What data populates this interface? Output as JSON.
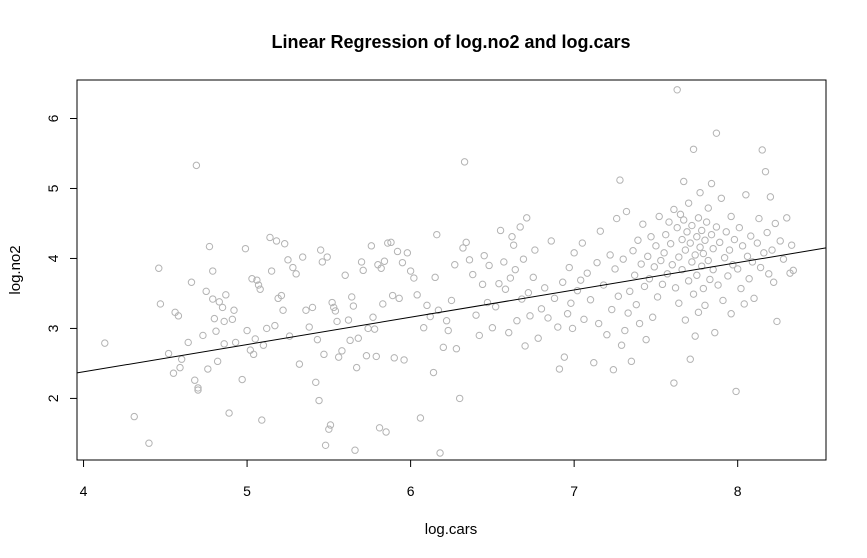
{
  "chart_data": {
    "type": "scatter",
    "title": "Linear Regression of log.no2 and log.cars",
    "xlabel": "log.cars",
    "ylabel": "log.no2",
    "xlim": [
      3.96,
      8.54
    ],
    "ylim": [
      1.12,
      6.55
    ],
    "xticks": [
      4,
      5,
      6,
      7,
      8
    ],
    "yticks": [
      2,
      3,
      4,
      5,
      6
    ],
    "grid": false,
    "legend": "none",
    "point_color": "#b3b3b3",
    "line_color": "#000000",
    "regression_line": {
      "intercept": 0.82,
      "slope": 0.39
    },
    "points": [
      [
        4.13,
        2.79
      ],
      [
        4.31,
        1.74
      ],
      [
        4.4,
        1.36
      ],
      [
        4.46,
        3.86
      ],
      [
        4.47,
        3.35
      ],
      [
        4.52,
        2.64
      ],
      [
        4.55,
        2.36
      ],
      [
        4.56,
        3.23
      ],
      [
        4.58,
        3.18
      ],
      [
        4.59,
        2.44
      ],
      [
        4.6,
        2.56
      ],
      [
        4.64,
        2.8
      ],
      [
        4.66,
        3.66
      ],
      [
        4.68,
        2.26
      ],
      [
        4.69,
        5.33
      ],
      [
        4.7,
        2.12
      ],
      [
        4.7,
        2.15
      ],
      [
        4.73,
        2.9
      ],
      [
        4.75,
        3.53
      ],
      [
        4.76,
        2.42
      ],
      [
        4.77,
        4.17
      ],
      [
        4.79,
        3.82
      ],
      [
        4.79,
        3.42
      ],
      [
        4.8,
        3.14
      ],
      [
        4.81,
        2.96
      ],
      [
        4.82,
        2.53
      ],
      [
        4.83,
        3.38
      ],
      [
        4.85,
        3.3
      ],
      [
        4.86,
        3.1
      ],
      [
        4.86,
        2.78
      ],
      [
        4.87,
        3.48
      ],
      [
        4.89,
        1.79
      ],
      [
        4.91,
        3.13
      ],
      [
        4.92,
        3.26
      ],
      [
        4.93,
        2.8
      ],
      [
        4.97,
        2.27
      ],
      [
        4.99,
        4.14
      ],
      [
        5.0,
        2.97
      ],
      [
        5.02,
        2.69
      ],
      [
        5.03,
        3.71
      ],
      [
        5.04,
        2.63
      ],
      [
        5.05,
        2.85
      ],
      [
        5.06,
        3.69
      ],
      [
        5.07,
        3.62
      ],
      [
        5.08,
        3.56
      ],
      [
        5.09,
        1.69
      ],
      [
        5.1,
        2.76
      ],
      [
        5.12,
        3.0
      ],
      [
        5.14,
        4.3
      ],
      [
        5.15,
        3.82
      ],
      [
        5.17,
        3.04
      ],
      [
        5.18,
        4.25
      ],
      [
        5.19,
        3.43
      ],
      [
        5.21,
        3.47
      ],
      [
        5.22,
        3.26
      ],
      [
        5.23,
        4.21
      ],
      [
        5.25,
        3.98
      ],
      [
        5.26,
        2.89
      ],
      [
        5.28,
        3.87
      ],
      [
        5.3,
        3.78
      ],
      [
        5.32,
        2.49
      ],
      [
        5.34,
        4.02
      ],
      [
        5.36,
        3.26
      ],
      [
        5.38,
        3.02
      ],
      [
        5.4,
        3.3
      ],
      [
        5.42,
        2.23
      ],
      [
        5.43,
        2.84
      ],
      [
        5.44,
        1.97
      ],
      [
        5.45,
        4.12
      ],
      [
        5.46,
        3.95
      ],
      [
        5.47,
        2.63
      ],
      [
        5.48,
        1.33
      ],
      [
        5.49,
        4.02
      ],
      [
        5.5,
        1.56
      ],
      [
        5.51,
        1.62
      ],
      [
        5.52,
        3.37
      ],
      [
        5.53,
        3.3
      ],
      [
        5.54,
        3.25
      ],
      [
        5.55,
        3.1
      ],
      [
        5.56,
        2.59
      ],
      [
        5.58,
        2.68
      ],
      [
        5.6,
        3.76
      ],
      [
        5.62,
        3.12
      ],
      [
        5.63,
        2.83
      ],
      [
        5.64,
        3.45
      ],
      [
        5.65,
        3.32
      ],
      [
        5.66,
        1.26
      ],
      [
        5.67,
        2.44
      ],
      [
        5.68,
        2.86
      ],
      [
        5.7,
        3.95
      ],
      [
        5.71,
        3.83
      ],
      [
        5.73,
        2.61
      ],
      [
        5.74,
        3.0
      ],
      [
        5.76,
        4.18
      ],
      [
        5.77,
        3.16
      ],
      [
        5.78,
        2.99
      ],
      [
        5.79,
        2.6
      ],
      [
        5.8,
        3.91
      ],
      [
        5.81,
        1.58
      ],
      [
        5.82,
        3.86
      ],
      [
        5.83,
        3.35
      ],
      [
        5.84,
        3.96
      ],
      [
        5.85,
        1.52
      ],
      [
        5.86,
        4.22
      ],
      [
        5.88,
        4.23
      ],
      [
        5.89,
        3.47
      ],
      [
        5.9,
        2.58
      ],
      [
        5.92,
        4.1
      ],
      [
        5.93,
        3.43
      ],
      [
        5.95,
        3.94
      ],
      [
        5.96,
        2.55
      ],
      [
        5.98,
        4.08
      ],
      [
        6.0,
        3.82
      ],
      [
        6.02,
        3.72
      ],
      [
        6.04,
        3.48
      ],
      [
        6.06,
        1.72
      ],
      [
        6.08,
        3.01
      ],
      [
        6.1,
        3.33
      ],
      [
        6.12,
        3.17
      ],
      [
        6.14,
        2.37
      ],
      [
        6.15,
        3.73
      ],
      [
        6.16,
        4.34
      ],
      [
        6.17,
        3.26
      ],
      [
        6.18,
        1.22
      ],
      [
        6.2,
        2.73
      ],
      [
        6.22,
        3.11
      ],
      [
        6.23,
        2.97
      ],
      [
        6.25,
        3.4
      ],
      [
        6.27,
        3.91
      ],
      [
        6.28,
        2.71
      ],
      [
        6.3,
        2.0
      ],
      [
        6.32,
        4.15
      ],
      [
        6.33,
        5.38
      ],
      [
        6.34,
        4.23
      ],
      [
        6.36,
        3.98
      ],
      [
        6.38,
        3.77
      ],
      [
        6.4,
        3.19
      ],
      [
        6.42,
        2.9
      ],
      [
        6.44,
        3.63
      ],
      [
        6.45,
        4.04
      ],
      [
        6.47,
        3.37
      ],
      [
        6.48,
        3.9
      ],
      [
        6.5,
        3.01
      ],
      [
        6.52,
        3.31
      ],
      [
        6.54,
        3.64
      ],
      [
        6.55,
        4.4
      ],
      [
        6.57,
        3.95
      ],
      [
        6.58,
        3.56
      ],
      [
        6.6,
        2.94
      ],
      [
        6.61,
        3.72
      ],
      [
        6.62,
        4.31
      ],
      [
        6.63,
        4.19
      ],
      [
        6.64,
        3.84
      ],
      [
        6.65,
        3.11
      ],
      [
        6.67,
        4.45
      ],
      [
        6.68,
        3.42
      ],
      [
        6.69,
        3.99
      ],
      [
        6.7,
        2.75
      ],
      [
        6.71,
        4.58
      ],
      [
        6.72,
        3.51
      ],
      [
        6.73,
        3.18
      ],
      [
        6.75,
        3.73
      ],
      [
        6.76,
        4.12
      ],
      [
        6.78,
        2.86
      ],
      [
        6.8,
        3.28
      ],
      [
        6.82,
        3.58
      ],
      [
        6.84,
        3.15
      ],
      [
        6.86,
        4.25
      ],
      [
        6.88,
        3.43
      ],
      [
        6.9,
        3.02
      ],
      [
        6.91,
        2.42
      ],
      [
        6.93,
        3.66
      ],
      [
        6.94,
        2.59
      ],
      [
        6.96,
        3.21
      ],
      [
        6.97,
        3.87
      ],
      [
        6.98,
        3.36
      ],
      [
        6.99,
        3.0
      ],
      [
        7.0,
        4.08
      ],
      [
        7.02,
        3.54
      ],
      [
        7.04,
        3.69
      ],
      [
        7.05,
        4.22
      ],
      [
        7.06,
        3.13
      ],
      [
        7.08,
        3.79
      ],
      [
        7.1,
        3.41
      ],
      [
        7.12,
        2.51
      ],
      [
        7.14,
        3.94
      ],
      [
        7.15,
        3.07
      ],
      [
        7.16,
        4.39
      ],
      [
        7.18,
        3.62
      ],
      [
        7.2,
        2.91
      ],
      [
        7.22,
        4.05
      ],
      [
        7.23,
        3.27
      ],
      [
        7.24,
        2.41
      ],
      [
        7.25,
        3.85
      ],
      [
        7.26,
        4.57
      ],
      [
        7.27,
        3.46
      ],
      [
        7.28,
        5.12
      ],
      [
        7.29,
        2.76
      ],
      [
        7.3,
        3.99
      ],
      [
        7.31,
        2.97
      ],
      [
        7.32,
        4.67
      ],
      [
        7.33,
        3.22
      ],
      [
        7.34,
        3.53
      ],
      [
        7.35,
        2.53
      ],
      [
        7.36,
        4.11
      ],
      [
        7.37,
        3.76
      ],
      [
        7.38,
        3.34
      ],
      [
        7.39,
        4.26
      ],
      [
        7.4,
        3.07
      ],
      [
        7.41,
        3.92
      ],
      [
        7.42,
        4.49
      ],
      [
        7.43,
        3.6
      ],
      [
        7.44,
        2.84
      ],
      [
        7.45,
        4.03
      ],
      [
        7.46,
        3.71
      ],
      [
        7.47,
        4.31
      ],
      [
        7.48,
        3.16
      ],
      [
        7.49,
        3.88
      ],
      [
        7.5,
        4.18
      ],
      [
        7.51,
        3.45
      ],
      [
        7.52,
        4.6
      ],
      [
        7.53,
        3.97
      ],
      [
        7.54,
        3.63
      ],
      [
        7.55,
        4.08
      ],
      [
        7.56,
        4.34
      ],
      [
        7.57,
        3.78
      ],
      [
        7.58,
        4.52
      ],
      [
        7.59,
        4.21
      ],
      [
        7.6,
        3.91
      ],
      [
        7.61,
        4.7
      ],
      [
        7.61,
        2.22
      ],
      [
        7.62,
        3.58
      ],
      [
        7.63,
        4.44
      ],
      [
        7.63,
        6.41
      ],
      [
        7.64,
        4.02
      ],
      [
        7.64,
        3.36
      ],
      [
        7.65,
        4.63
      ],
      [
        7.66,
        4.27
      ],
      [
        7.66,
        3.84
      ],
      [
        7.67,
        4.55
      ],
      [
        7.67,
        5.1
      ],
      [
        7.68,
        3.12
      ],
      [
        7.68,
        4.12
      ],
      [
        7.69,
        4.38
      ],
      [
        7.7,
        3.68
      ],
      [
        7.7,
        4.79
      ],
      [
        7.71,
        2.56
      ],
      [
        7.71,
        4.22
      ],
      [
        7.72,
        3.95
      ],
      [
        7.72,
        4.47
      ],
      [
        7.73,
        3.49
      ],
      [
        7.73,
        5.56
      ],
      [
        7.74,
        4.05
      ],
      [
        7.74,
        2.89
      ],
      [
        7.75,
        4.31
      ],
      [
        7.75,
        3.76
      ],
      [
        7.76,
        4.58
      ],
      [
        7.76,
        3.23
      ],
      [
        7.77,
        4.16
      ],
      [
        7.77,
        4.94
      ],
      [
        7.78,
        3.89
      ],
      [
        7.78,
        4.4
      ],
      [
        7.79,
        3.57
      ],
      [
        7.79,
        4.07
      ],
      [
        7.8,
        4.26
      ],
      [
        7.8,
        3.33
      ],
      [
        7.81,
        4.52
      ],
      [
        7.82,
        3.97
      ],
      [
        7.82,
        4.72
      ],
      [
        7.83,
        3.7
      ],
      [
        7.84,
        4.34
      ],
      [
        7.84,
        5.07
      ],
      [
        7.85,
        3.84
      ],
      [
        7.85,
        4.14
      ],
      [
        7.86,
        2.94
      ],
      [
        7.87,
        4.45
      ],
      [
        7.87,
        5.79
      ],
      [
        7.88,
        3.62
      ],
      [
        7.89,
        4.23
      ],
      [
        7.9,
        4.86
      ],
      [
        7.91,
        3.4
      ],
      [
        7.92,
        4.01
      ],
      [
        7.93,
        4.38
      ],
      [
        7.94,
        3.75
      ],
      [
        7.95,
        4.12
      ],
      [
        7.96,
        3.21
      ],
      [
        7.96,
        4.6
      ],
      [
        7.97,
        3.91
      ],
      [
        7.98,
        4.27
      ],
      [
        7.99,
        2.1
      ],
      [
        8.0,
        3.85
      ],
      [
        8.01,
        4.44
      ],
      [
        8.02,
        3.57
      ],
      [
        8.03,
        4.18
      ],
      [
        8.04,
        3.35
      ],
      [
        8.05,
        4.91
      ],
      [
        8.06,
        4.03
      ],
      [
        8.07,
        3.71
      ],
      [
        8.08,
        4.32
      ],
      [
        8.09,
        3.95
      ],
      [
        8.1,
        3.43
      ],
      [
        8.12,
        4.22
      ],
      [
        8.13,
        4.57
      ],
      [
        8.14,
        3.87
      ],
      [
        8.15,
        5.55
      ],
      [
        8.16,
        4.08
      ],
      [
        8.17,
        5.24
      ],
      [
        8.18,
        4.37
      ],
      [
        8.19,
        3.78
      ],
      [
        8.2,
        4.88
      ],
      [
        8.21,
        4.12
      ],
      [
        8.22,
        3.66
      ],
      [
        8.23,
        4.5
      ],
      [
        8.24,
        3.1
      ],
      [
        8.26,
        4.25
      ],
      [
        8.28,
        3.99
      ],
      [
        8.3,
        4.58
      ],
      [
        8.32,
        3.79
      ],
      [
        8.33,
        4.19
      ],
      [
        8.34,
        3.83
      ]
    ]
  }
}
